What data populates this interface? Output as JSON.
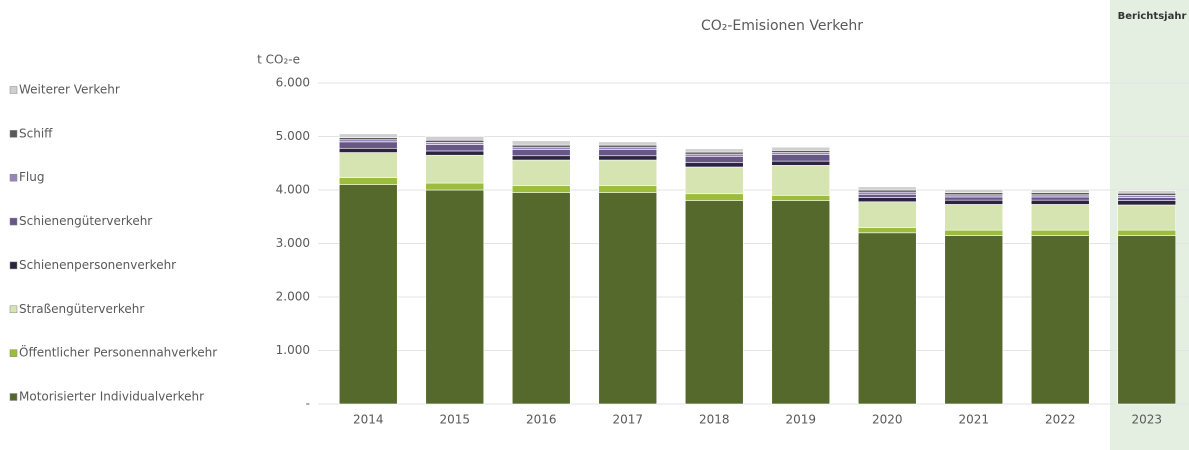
{
  "chart_data": {
    "type": "stacked_bar",
    "title": "CO₂-Emisionen Verkehr",
    "y_label": "t CO₂-e",
    "highlight_label": "Berichtsjahr",
    "highlight_category": "2023",
    "categories": [
      "2014",
      "2015",
      "2016",
      "2017",
      "2018",
      "2019",
      "2020",
      "2021",
      "2022",
      "2023"
    ],
    "series": [
      {
        "name": "Motorisierter Individualverkehr",
        "color": "#56692c",
        "values": [
          4100,
          4000,
          3950,
          3950,
          3800,
          3800,
          3200,
          3150,
          3150,
          3150
        ]
      },
      {
        "name": "Öffentlicher Personennahverkehr",
        "color": "#9cbc3e",
        "values": [
          130,
          130,
          130,
          130,
          130,
          100,
          100,
          100,
          100,
          100
        ]
      },
      {
        "name": "Straßengüterverkehr",
        "color": "#d5e4b0",
        "values": [
          470,
          520,
          480,
          480,
          500,
          560,
          480,
          480,
          480,
          470
        ]
      },
      {
        "name": "Schienenpersonenverkehr",
        "color": "#2b2340",
        "values": [
          80,
          80,
          80,
          80,
          80,
          80,
          80,
          80,
          80,
          80
        ]
      },
      {
        "name": "Schienengüterverkehr",
        "color": "#675789",
        "values": [
          120,
          120,
          120,
          120,
          120,
          120,
          60,
          60,
          60,
          60
        ]
      },
      {
        "name": "Flug",
        "color": "#9585b8",
        "values": [
          40,
          40,
          40,
          40,
          40,
          40,
          40,
          40,
          40,
          40
        ]
      },
      {
        "name": "Schiff",
        "color": "#5a5a5a",
        "values": [
          40,
          40,
          40,
          40,
          40,
          40,
          40,
          40,
          40,
          40
        ]
      },
      {
        "name": "Weiterer Verkehr",
        "color": "#cfcfcf",
        "values": [
          70,
          70,
          80,
          60,
          60,
          60,
          60,
          60,
          60,
          50
        ]
      }
    ],
    "ylim": [
      0,
      6000
    ],
    "yticks": [
      {
        "value": 0,
        "label": "-"
      },
      {
        "value": 1000,
        "label": "1.000"
      },
      {
        "value": 2000,
        "label": "2.000"
      },
      {
        "value": 3000,
        "label": "3.000"
      },
      {
        "value": 4000,
        "label": "4.000"
      },
      {
        "value": 5000,
        "label": "5.000"
      },
      {
        "value": 6000,
        "label": "6.000"
      }
    ],
    "grid": true,
    "legend": "left"
  }
}
